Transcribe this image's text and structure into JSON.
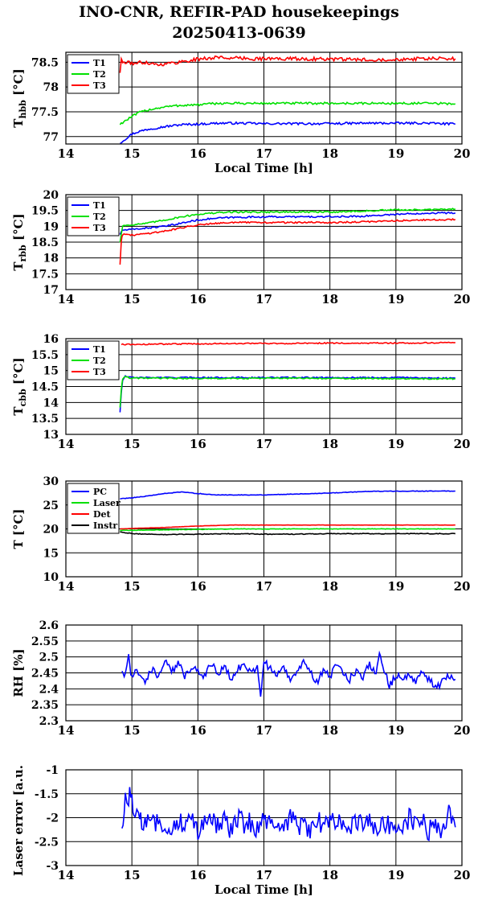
{
  "header": {
    "title_line1": "INO-CNR, REFIR-PAD housekeepings",
    "title_line2": "20250413-0639"
  },
  "colors": {
    "blue": "#0000ff",
    "green": "#00e000",
    "red": "#ff0000",
    "black": "#000000"
  },
  "chart_data": [
    {
      "type": "line",
      "ylabel_main": "T",
      "ylabel_sub": "hbb",
      "ylabel_unit": " [°C]",
      "xlabel": "Local Time [h]",
      "xlim": [
        14,
        20
      ],
      "ylim": [
        76.85,
        78.7
      ],
      "xticks": [
        14,
        15,
        16,
        17,
        18,
        19,
        20
      ],
      "yticks": [
        77,
        77.5,
        78,
        78.5
      ],
      "ytick_labels": [
        "77",
        "77.5",
        "78",
        "78.5"
      ],
      "legend_position": "top-left",
      "series": [
        {
          "name": "T1",
          "color": "#0000ff",
          "x": [
            14.82,
            14.9,
            15.0,
            15.1,
            15.25,
            15.5,
            15.75,
            16.0,
            16.3,
            16.6,
            17.0,
            17.5,
            18.0,
            18.5,
            19.0,
            19.5,
            19.9
          ],
          "y": [
            76.87,
            76.95,
            77.05,
            77.1,
            77.15,
            77.2,
            77.24,
            77.25,
            77.27,
            77.27,
            77.26,
            77.26,
            77.26,
            77.27,
            77.27,
            77.27,
            77.25
          ],
          "noise": 0.022
        },
        {
          "name": "T2",
          "color": "#00e000",
          "x": [
            14.82,
            14.9,
            15.0,
            15.1,
            15.25,
            15.5,
            15.75,
            16.0,
            16.3,
            16.6,
            17.0,
            17.5,
            18.0,
            18.5,
            19.0,
            19.5,
            19.9
          ],
          "y": [
            77.25,
            77.32,
            77.4,
            77.48,
            77.54,
            77.6,
            77.63,
            77.64,
            77.67,
            77.67,
            77.67,
            77.67,
            77.67,
            77.67,
            77.67,
            77.67,
            77.66
          ],
          "noise": 0.022
        },
        {
          "name": "T3",
          "color": "#ff0000",
          "x": [
            14.82,
            14.84,
            14.86,
            15.0,
            15.2,
            15.4,
            15.6,
            15.8,
            16.0,
            16.3,
            16.6,
            17.0,
            17.5,
            18.0,
            18.5,
            19.0,
            19.5,
            19.9
          ],
          "y": [
            78.3,
            78.55,
            78.5,
            78.48,
            78.5,
            78.45,
            78.48,
            78.52,
            78.56,
            78.6,
            78.58,
            78.57,
            78.57,
            78.56,
            78.55,
            78.56,
            78.57,
            78.57
          ],
          "noise": 0.035
        }
      ]
    },
    {
      "type": "line",
      "ylabel_main": "T",
      "ylabel_sub": "rbb",
      "ylabel_unit": " [°C]",
      "xlabel": "",
      "xlim": [
        14,
        20
      ],
      "ylim": [
        17,
        20
      ],
      "xticks": [
        14,
        15,
        16,
        17,
        18,
        19,
        20
      ],
      "yticks": [
        17,
        17.5,
        18,
        18.5,
        19,
        19.5,
        20
      ],
      "ytick_labels": [
        "17",
        "17.5",
        "18",
        "18.5",
        "19",
        "19.5",
        "20"
      ],
      "legend_position": "top-left",
      "series": [
        {
          "name": "T1",
          "color": "#0000ff",
          "x": [
            14.82,
            14.86,
            15.0,
            15.25,
            15.5,
            15.75,
            16.0,
            16.25,
            16.5,
            17.0,
            17.5,
            18.0,
            18.5,
            19.0,
            19.5,
            19.9
          ],
          "y": [
            18.75,
            18.88,
            18.9,
            18.95,
            19.0,
            19.1,
            19.2,
            19.25,
            19.28,
            19.3,
            19.3,
            19.3,
            19.32,
            19.38,
            19.42,
            19.42
          ],
          "noise": 0.025
        },
        {
          "name": "T2",
          "color": "#00e000",
          "x": [
            14.82,
            14.86,
            15.0,
            15.25,
            15.5,
            15.75,
            16.0,
            16.25,
            16.5,
            17.0,
            17.5,
            18.0,
            18.5,
            19.0,
            19.5,
            19.9
          ],
          "y": [
            18.5,
            19.02,
            19.05,
            19.1,
            19.2,
            19.3,
            19.38,
            19.42,
            19.45,
            19.45,
            19.45,
            19.45,
            19.48,
            19.52,
            19.52,
            19.55
          ],
          "noise": 0.025
        },
        {
          "name": "T3",
          "color": "#ff0000",
          "x": [
            14.82,
            14.84,
            14.86,
            15.0,
            15.25,
            15.5,
            15.75,
            16.0,
            16.25,
            16.5,
            17.0,
            17.5,
            18.0,
            18.5,
            19.0,
            19.5,
            19.9
          ],
          "y": [
            17.8,
            18.55,
            18.75,
            18.72,
            18.78,
            18.85,
            18.95,
            19.05,
            19.1,
            19.12,
            19.12,
            19.12,
            19.12,
            19.14,
            19.18,
            19.2,
            19.22
          ],
          "noise": 0.025
        }
      ]
    },
    {
      "type": "line",
      "ylabel_main": "T",
      "ylabel_sub": "cbb",
      "ylabel_unit": " [°C]",
      "xlabel": "",
      "xlim": [
        14,
        20
      ],
      "ylim": [
        13,
        16
      ],
      "xticks": [
        14,
        15,
        16,
        17,
        18,
        19,
        20
      ],
      "yticks": [
        13,
        13.5,
        14,
        14.5,
        15,
        15.5,
        16
      ],
      "ytick_labels": [
        "13",
        "13.5",
        "14",
        "14.5",
        "15",
        "15.5",
        "16"
      ],
      "legend_position": "top-left",
      "series": [
        {
          "name": "T1",
          "color": "#0000ff",
          "x": [
            14.82,
            14.84,
            14.86,
            14.9,
            15.0,
            15.5,
            16.0,
            16.5,
            17.0,
            17.5,
            18.0,
            18.5,
            19.0,
            19.5,
            19.9
          ],
          "y": [
            13.7,
            14.3,
            14.7,
            14.82,
            14.78,
            14.78,
            14.78,
            14.78,
            14.78,
            14.78,
            14.78,
            14.78,
            14.78,
            14.77,
            14.76
          ],
          "noise": 0.02
        },
        {
          "name": "T2",
          "color": "#00e000",
          "x": [
            14.82,
            14.84,
            14.86,
            14.9,
            15.0,
            15.5,
            16.0,
            16.5,
            17.0,
            17.5,
            18.0,
            18.5,
            19.0,
            19.5,
            19.9
          ],
          "y": [
            13.85,
            14.4,
            14.75,
            14.8,
            14.76,
            14.76,
            14.75,
            14.75,
            14.76,
            14.76,
            14.75,
            14.75,
            14.75,
            14.74,
            14.74
          ],
          "noise": 0.02
        },
        {
          "name": "T3",
          "color": "#ff0000",
          "x": [
            14.84,
            15.0,
            15.5,
            16.0,
            16.5,
            17.0,
            17.5,
            18.0,
            18.5,
            19.0,
            19.5,
            19.9
          ],
          "y": [
            15.82,
            15.82,
            15.83,
            15.84,
            15.85,
            15.85,
            15.85,
            15.86,
            15.86,
            15.86,
            15.87,
            15.88
          ],
          "noise": 0.018
        }
      ]
    },
    {
      "type": "line",
      "ylabel_main": "T [°C]",
      "ylabel_sub": "",
      "ylabel_unit": "",
      "xlabel": "",
      "xlim": [
        14,
        20
      ],
      "ylim": [
        10,
        30
      ],
      "xticks": [
        14,
        15,
        16,
        17,
        18,
        19,
        20
      ],
      "yticks": [
        10,
        15,
        20,
        25,
        30
      ],
      "ytick_labels": [
        "10",
        "15",
        "20",
        "25",
        "30"
      ],
      "legend_position": "top-left",
      "series": [
        {
          "name": "PC",
          "color": "#0000ff",
          "x": [
            14.82,
            15.0,
            15.25,
            15.5,
            15.75,
            16.0,
            16.25,
            16.5,
            17.0,
            17.5,
            18.0,
            18.5,
            19.0,
            19.5,
            19.9
          ],
          "y": [
            26.3,
            26.5,
            26.9,
            27.4,
            27.7,
            27.4,
            27.1,
            27.1,
            27.1,
            27.3,
            27.5,
            27.8,
            27.9,
            27.9,
            27.9
          ],
          "noise": 0.06
        },
        {
          "name": "Laser",
          "color": "#00e000",
          "x": [
            14.82,
            15.0,
            15.5,
            16.0,
            16.5,
            17.0,
            17.5,
            18.0,
            18.5,
            19.0,
            19.5,
            19.9
          ],
          "y": [
            19.7,
            19.7,
            19.8,
            19.9,
            20.0,
            20.0,
            20.0,
            20.0,
            20.0,
            20.0,
            20.0,
            20.0
          ],
          "noise": 0.05
        },
        {
          "name": "Det",
          "color": "#ff0000",
          "x": [
            14.82,
            15.0,
            15.5,
            16.0,
            16.5,
            17.0,
            17.5,
            18.0,
            18.5,
            19.0,
            19.5,
            19.9
          ],
          "y": [
            20.0,
            20.1,
            20.3,
            20.6,
            20.8,
            20.8,
            20.8,
            20.8,
            20.8,
            20.8,
            20.8,
            20.8
          ],
          "noise": 0.02
        },
        {
          "name": "Instr",
          "color": "#000000",
          "x": [
            14.82,
            15.0,
            15.5,
            16.0,
            16.5,
            17.0,
            17.5,
            18.0,
            18.5,
            19.0,
            19.5,
            19.9
          ],
          "y": [
            19.4,
            19.0,
            18.8,
            18.9,
            19.0,
            18.9,
            18.9,
            19.0,
            19.0,
            19.0,
            19.0,
            19.0
          ],
          "noise": 0.08
        }
      ]
    },
    {
      "type": "line",
      "ylabel_main": "RH [%]",
      "ylabel_sub": "",
      "ylabel_unit": "",
      "xlabel": "",
      "xlim": [
        14,
        20
      ],
      "ylim": [
        2.3,
        2.6
      ],
      "xticks": [
        14,
        15,
        16,
        17,
        18,
        19,
        20
      ],
      "yticks": [
        2.3,
        2.35,
        2.4,
        2.45,
        2.5,
        2.55,
        2.6
      ],
      "ytick_labels": [
        "2.3",
        "2.35",
        "2.4",
        "2.45",
        "2.5",
        "2.55",
        "2.6"
      ],
      "legend_position": "none",
      "series": [
        {
          "name": "RH",
          "color": "#0000ff",
          "x": [
            14.85,
            14.9,
            14.95,
            15.0,
            15.05,
            15.1,
            15.2,
            15.3,
            15.4,
            15.5,
            15.6,
            15.7,
            15.8,
            15.9,
            16.0,
            16.1,
            16.2,
            16.3,
            16.4,
            16.5,
            16.6,
            16.7,
            16.8,
            16.9,
            16.95,
            17.0,
            17.1,
            17.2,
            17.3,
            17.4,
            17.5,
            17.6,
            17.7,
            17.8,
            17.9,
            18.0,
            18.1,
            18.2,
            18.3,
            18.4,
            18.5,
            18.6,
            18.7,
            18.75,
            18.8,
            18.9,
            19.0,
            19.1,
            19.2,
            19.3,
            19.4,
            19.5,
            19.6,
            19.7,
            19.8,
            19.9
          ],
          "y": [
            2.46,
            2.44,
            2.5,
            2.43,
            2.47,
            2.45,
            2.42,
            2.46,
            2.44,
            2.49,
            2.45,
            2.48,
            2.44,
            2.47,
            2.46,
            2.44,
            2.48,
            2.45,
            2.47,
            2.43,
            2.46,
            2.48,
            2.45,
            2.47,
            2.38,
            2.49,
            2.46,
            2.44,
            2.47,
            2.43,
            2.46,
            2.48,
            2.45,
            2.42,
            2.46,
            2.44,
            2.47,
            2.45,
            2.43,
            2.46,
            2.44,
            2.48,
            2.45,
            2.51,
            2.47,
            2.41,
            2.44,
            2.43,
            2.45,
            2.42,
            2.45,
            2.43,
            2.4,
            2.42,
            2.44,
            2.43
          ],
          "noise": 0.012
        }
      ]
    },
    {
      "type": "line",
      "ylabel_main": "Laser error [a.u.]",
      "ylabel_sub": "",
      "ylabel_unit": "",
      "xlabel": "Local Time [h]",
      "xlim": [
        14,
        20
      ],
      "ylim": [
        -3,
        -1
      ],
      "xticks": [
        14,
        15,
        16,
        17,
        18,
        19,
        20
      ],
      "yticks": [
        -3,
        -2.5,
        -2,
        -1.5,
        -1
      ],
      "ytick_labels": [
        "-3",
        "-2.5",
        "-2",
        "-1.5",
        "-1"
      ],
      "legend_position": "none",
      "series": [
        {
          "name": "Laser error",
          "color": "#0000ff",
          "x": [
            14.85,
            14.9,
            14.95,
            15.0,
            15.05,
            15.1,
            15.15,
            15.2,
            15.3,
            15.4,
            15.5,
            15.6,
            15.7,
            15.8,
            15.9,
            16.0,
            16.1,
            16.2,
            16.3,
            16.4,
            16.5,
            16.6,
            16.7,
            16.8,
            16.9,
            17.0,
            17.1,
            17.2,
            17.3,
            17.4,
            17.5,
            17.6,
            17.7,
            17.8,
            17.9,
            18.0,
            18.1,
            18.2,
            18.3,
            18.4,
            18.5,
            18.6,
            18.7,
            18.8,
            18.9,
            19.0,
            19.1,
            19.2,
            19.3,
            19.4,
            19.5,
            19.6,
            19.7,
            19.8,
            19.9
          ],
          "y": [
            -2.15,
            -1.7,
            -1.55,
            -1.6,
            -1.9,
            -2.0,
            -2.15,
            -2.05,
            -1.95,
            -2.15,
            -2.1,
            -2.3,
            -2.05,
            -2.2,
            -2.0,
            -2.25,
            -2.0,
            -1.95,
            -2.2,
            -2.05,
            -2.3,
            -2.0,
            -2.15,
            -2.1,
            -2.25,
            -1.95,
            -2.2,
            -2.05,
            -2.3,
            -2.0,
            -2.2,
            -2.1,
            -2.35,
            -2.0,
            -2.25,
            -1.95,
            -2.2,
            -2.05,
            -2.3,
            -2.0,
            -2.25,
            -2.1,
            -2.35,
            -2.0,
            -2.2,
            -2.1,
            -2.3,
            -2.0,
            -2.2,
            -2.05,
            -2.3,
            -2.1,
            -2.35,
            -1.95,
            -2.2
          ],
          "noise": 0.22
        }
      ]
    }
  ]
}
